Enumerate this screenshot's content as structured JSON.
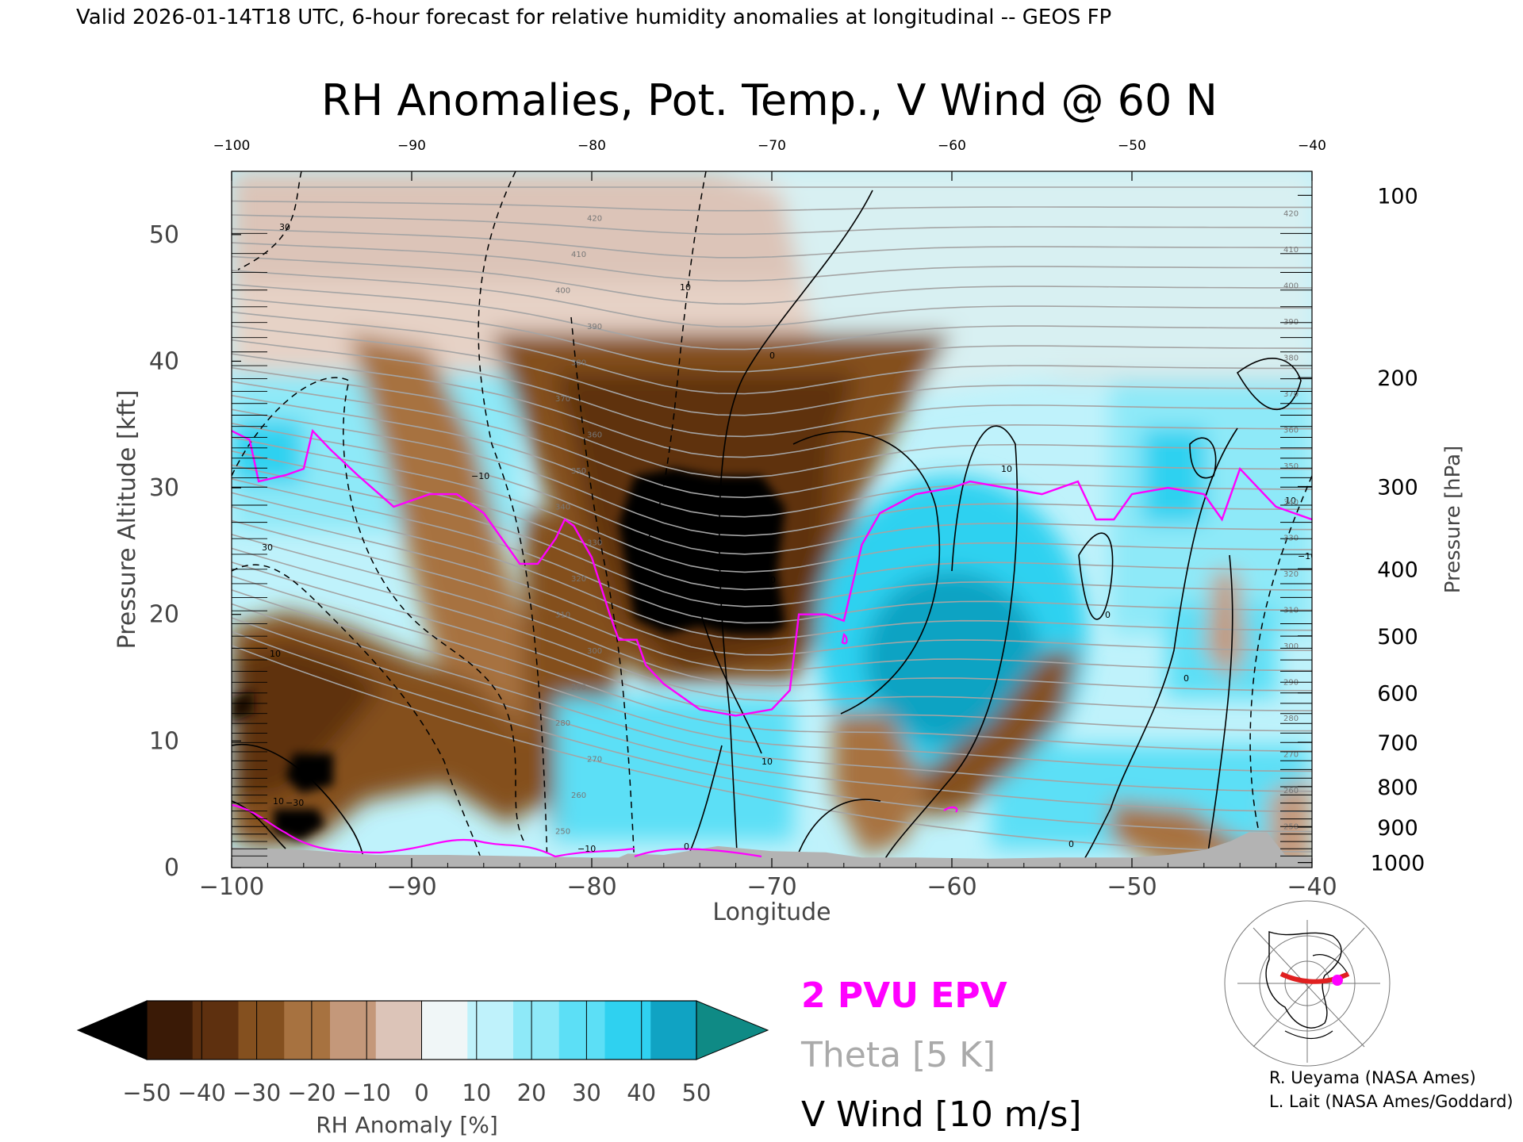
{
  "header": "Valid 2026-01-14T18 UTC, 6-hour forecast for relative humidity anomalies at longitudinal -- GEOS FP",
  "chart_data": {
    "type": "heatmap",
    "title": "RH Anomalies, Pot. Temp., V Wind @ 60 N",
    "xlabel": "Longitude",
    "ylabel": "Pressure Altitude [kft]",
    "y2label": "Pressure [hPa]",
    "xlim": [
      -100,
      -40
    ],
    "ylim": [
      0,
      55
    ],
    "x_ticks": [
      -100,
      -90,
      -80,
      -70,
      -60,
      -50,
      -40
    ],
    "x_tick_labels": [
      "−100",
      "−90",
      "−80",
      "−70",
      "−60",
      "−50",
      "−40"
    ],
    "y_ticks": [
      0,
      10,
      20,
      30,
      40,
      50
    ],
    "y_tick_labels": [
      "0",
      "10",
      "20",
      "30",
      "40",
      "50"
    ],
    "pressure_ticks": [
      {
        "label": "100",
        "kft": 53.1
      },
      {
        "label": "200",
        "kft": 38.7
      },
      {
        "label": "300",
        "kft": 30.1
      },
      {
        "label": "400",
        "kft": 23.6
      },
      {
        "label": "500",
        "kft": 18.3
      },
      {
        "label": "600",
        "kft": 13.8
      },
      {
        "label": "700",
        "kft": 9.9
      },
      {
        "label": "800",
        "kft": 6.4
      },
      {
        "label": "900",
        "kft": 3.2
      },
      {
        "label": "1000",
        "kft": 0.4
      }
    ],
    "colorbar": {
      "label": "RH Anomaly [%]",
      "ticks": [
        "−50",
        "−40",
        "−30",
        "−20",
        "−10",
        "0",
        "10",
        "20",
        "30",
        "40",
        "50"
      ],
      "colors": [
        "#000000",
        "#3a1a06",
        "#5e300f",
        "#84501f",
        "#a77240",
        "#c4987a",
        "#dcc4b8",
        "#f0f6f7",
        "#bff2fb",
        "#8ee9f8",
        "#5cdff6",
        "#2fd1f0",
        "#10a3c3",
        "#0f8a85"
      ]
    },
    "legend": [
      {
        "label": "2 PVU EPV",
        "color": "#ff00ff"
      },
      {
        "label": "Theta [5 K]",
        "color": "#aaaaaa"
      },
      {
        "label": "V Wind [10 m/s]",
        "color": "#000000"
      }
    ],
    "theta_labels": [
      "250",
      "260",
      "270",
      "280",
      "290",
      "300",
      "310",
      "320",
      "330",
      "340",
      "350",
      "360",
      "370",
      "380",
      "390",
      "400",
      "410",
      "420"
    ],
    "wind_labels": [
      "30",
      "30",
      "10",
      "10",
      "10",
      "10",
      "10",
      "0",
      "0",
      "0",
      "0",
      "0",
      "10",
      "10",
      "−10",
      "−10",
      "−30",
      "−10"
    ],
    "pv_2pvu_line": [
      [
        -100,
        34.5
      ],
      [
        -99,
        33.8
      ],
      [
        -98.5,
        30.5
      ],
      [
        -97,
        31
      ],
      [
        -96,
        31.5
      ],
      [
        -95.5,
        34.5
      ],
      [
        -94.5,
        33
      ],
      [
        -93,
        31
      ],
      [
        -91,
        28.5
      ],
      [
        -89,
        29.5
      ],
      [
        -87.5,
        29.5
      ],
      [
        -86,
        28
      ],
      [
        -84,
        24
      ],
      [
        -83,
        24
      ],
      [
        -82,
        26
      ],
      [
        -81.5,
        27.5
      ],
      [
        -81,
        27
      ],
      [
        -80,
        24.5
      ],
      [
        -79,
        20
      ],
      [
        -78.5,
        18
      ],
      [
        -77.5,
        18
      ],
      [
        -77,
        16
      ],
      [
        -76,
        14.5
      ],
      [
        -74,
        12.5
      ],
      [
        -72,
        12
      ],
      [
        -70,
        12.5
      ],
      [
        -69,
        14
      ],
      [
        -68.5,
        20
      ],
      [
        -67,
        20
      ],
      [
        -66,
        19.5
      ],
      [
        -65,
        25.5
      ],
      [
        -64,
        28
      ],
      [
        -62,
        29.5
      ],
      [
        -60,
        30
      ],
      [
        -59,
        30.5
      ],
      [
        -57,
        30
      ],
      [
        -55,
        29.5
      ],
      [
        -53,
        30.5
      ],
      [
        -52,
        27.5
      ],
      [
        -51,
        27.5
      ],
      [
        -50,
        29.5
      ],
      [
        -48,
        30
      ],
      [
        -46,
        29.5
      ],
      [
        -45,
        27.5
      ],
      [
        -44,
        31.5
      ],
      [
        -43,
        30
      ],
      [
        -42,
        28.5
      ],
      [
        -41,
        28
      ],
      [
        -40,
        27.5
      ]
    ],
    "topography": [
      [
        -100,
        1.6
      ],
      [
        -96,
        1.4
      ],
      [
        -92,
        1.0
      ],
      [
        -88,
        1.0
      ],
      [
        -84,
        0.9
      ],
      [
        -80,
        0.8
      ],
      [
        -78.5,
        0.8
      ],
      [
        -78,
        1.1
      ],
      [
        -76,
        1.0
      ],
      [
        -73,
        1.7
      ],
      [
        -70,
        1.3
      ],
      [
        -67,
        1.2
      ],
      [
        -65,
        0.8
      ],
      [
        -62,
        0.8
      ],
      [
        -58,
        0.7
      ],
      [
        -54,
        0.8
      ],
      [
        -50,
        0.8
      ],
      [
        -48,
        1.0
      ],
      [
        -46,
        1.4
      ],
      [
        -44.5,
        2.1
      ],
      [
        -43.5,
        2.8
      ],
      [
        -42.5,
        2.8
      ],
      [
        -41.5,
        1.0
      ],
      [
        -40,
        0.8
      ]
    ],
    "panels": {
      "corner_map": "polar projection map of the northern hemisphere with cross-section line at 60 N"
    }
  },
  "credits": [
    "R. Ueyama (NASA Ames)",
    "L. Lait (NASA Ames/Goddard)"
  ]
}
